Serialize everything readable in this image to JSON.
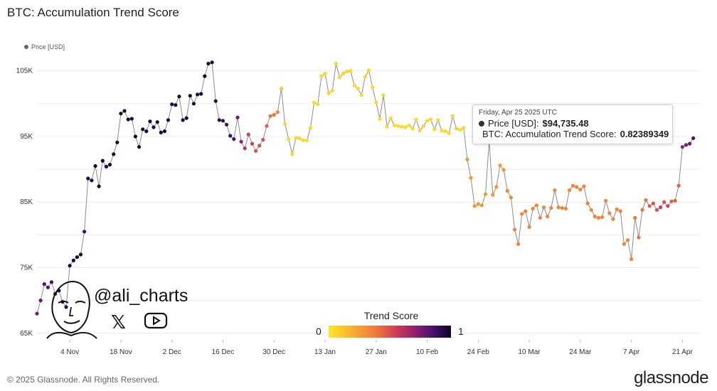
{
  "title": "BTC: Accumulation Trend Score",
  "legend": {
    "label": "Price [USD]"
  },
  "footer": "© 2025 Glassnode. All Rights Reserved.",
  "brand": "glassnode",
  "watermark": {
    "handle": "@ali_charts",
    "x_glyph": "𝕏"
  },
  "tooltip": {
    "date": "Friday, Apr 25 2025 UTC",
    "price_label": "Price [USD]:",
    "price_value": "$94,735.48",
    "score_label": "BTC: Accumulation Trend Score:",
    "score_value": "0.82389349",
    "price_color": "#333333",
    "score_color": "#5a1a7a"
  },
  "color_scale": {
    "title": "Trend Score",
    "min_label": "0",
    "max_label": "1"
  },
  "chart_data": {
    "type": "scatter",
    "title": "BTC: Accumulation Trend Score",
    "x_ticks": [
      "4 Nov",
      "18 Nov",
      "2 Dec",
      "16 Dec",
      "30 Dec",
      "13 Jan",
      "27 Jan",
      "10 Feb",
      "24 Feb",
      "10 Mar",
      "24 Mar",
      "7 Apr",
      "21 Apr"
    ],
    "y_ticks": [
      "65K",
      "75K",
      "85K",
      "95K",
      "105K"
    ],
    "ylim": [
      64000,
      108000
    ],
    "series": [
      {
        "name": "Price [USD]",
        "x_day_start": "2024-10-26",
        "points": [
          [
            0,
            68000,
            0.7
          ],
          [
            1,
            70000,
            0.75
          ],
          [
            2,
            72500,
            0.8
          ],
          [
            3,
            72000,
            0.8
          ],
          [
            4,
            72800,
            0.85
          ],
          [
            5,
            71000,
            0.85
          ],
          [
            6,
            71500,
            0.9
          ],
          [
            7,
            69800,
            0.9
          ],
          [
            8,
            69000,
            0.9
          ],
          [
            9,
            75300,
            0.95
          ],
          [
            10,
            76100,
            0.95
          ],
          [
            11,
            76600,
            0.95
          ],
          [
            12,
            77000,
            0.95
          ],
          [
            13,
            80500,
            0.85
          ],
          [
            14,
            88600,
            0.95
          ],
          [
            15,
            88300,
            0.95
          ],
          [
            16,
            90500,
            0.95
          ],
          [
            17,
            87400,
            0.95
          ],
          [
            18,
            91300,
            0.95
          ],
          [
            19,
            90400,
            0.95
          ],
          [
            20,
            90700,
            0.95
          ],
          [
            21,
            92300,
            0.95
          ],
          [
            22,
            94100,
            0.95
          ],
          [
            23,
            98500,
            0.95
          ],
          [
            24,
            98900,
            0.95
          ],
          [
            25,
            97600,
            0.95
          ],
          [
            26,
            97700,
            0.95
          ],
          [
            27,
            95000,
            0.95
          ],
          [
            28,
            93400,
            0.95
          ],
          [
            29,
            96100,
            0.95
          ],
          [
            30,
            95800,
            0.95
          ],
          [
            31,
            97300,
            0.95
          ],
          [
            32,
            96400,
            0.95
          ],
          [
            33,
            97200,
            0.95
          ],
          [
            34,
            95600,
            0.95
          ],
          [
            35,
            95800,
            0.95
          ],
          [
            36,
            97500,
            0.95
          ],
          [
            37,
            99900,
            0.95
          ],
          [
            38,
            99800,
            0.95
          ],
          [
            39,
            101100,
            0.95
          ],
          [
            40,
            97500,
            0.95
          ],
          [
            41,
            97800,
            0.95
          ],
          [
            42,
            101200,
            0.95
          ],
          [
            43,
            100000,
            0.95
          ],
          [
            44,
            101400,
            0.95
          ],
          [
            45,
            101500,
            0.95
          ],
          [
            46,
            104200,
            0.95
          ],
          [
            47,
            106100,
            0.95
          ],
          [
            48,
            106300,
            0.95
          ],
          [
            49,
            100400,
            0.9
          ],
          [
            50,
            97500,
            0.9
          ],
          [
            51,
            97400,
            0.88
          ],
          [
            52,
            96800,
            0.85
          ],
          [
            53,
            95100,
            0.85
          ],
          [
            54,
            94600,
            0.8
          ],
          [
            55,
            97900,
            0.75
          ],
          [
            56,
            94200,
            0.65
          ],
          [
            57,
            93200,
            0.55
          ],
          [
            58,
            95300,
            0.5
          ],
          [
            59,
            93900,
            0.5
          ],
          [
            60,
            92800,
            0.45
          ],
          [
            61,
            93600,
            0.45
          ],
          [
            62,
            94500,
            0.45
          ],
          [
            63,
            96600,
            0.4
          ],
          [
            64,
            98100,
            0.35
          ],
          [
            65,
            98300,
            0.35
          ],
          [
            66,
            98700,
            0.3
          ],
          [
            67,
            102300,
            0.1
          ],
          [
            68,
            96900,
            0.05
          ],
          [
            69,
            94600,
            0.05
          ],
          [
            70,
            92300,
            0.05
          ],
          [
            71,
            94800,
            0.05
          ],
          [
            72,
            94700,
            0.05
          ],
          [
            73,
            94400,
            0.05
          ],
          [
            74,
            94400,
            0.05
          ],
          [
            75,
            96300,
            0.05
          ],
          [
            76,
            100200,
            0.05
          ],
          [
            77,
            99900,
            0.05
          ],
          [
            78,
            104200,
            0.05
          ],
          [
            79,
            104600,
            0.05
          ],
          [
            80,
            101600,
            0.05
          ],
          [
            81,
            102000,
            0.05
          ],
          [
            82,
            106100,
            0.05
          ],
          [
            83,
            104000,
            0.05
          ],
          [
            84,
            104600,
            0.05
          ],
          [
            85,
            104900,
            0.05
          ],
          [
            86,
            105000,
            0.05
          ],
          [
            87,
            102800,
            0.05
          ],
          [
            88,
            102300,
            0.05
          ],
          [
            89,
            101300,
            0.05
          ],
          [
            90,
            104100,
            0.05
          ],
          [
            91,
            105100,
            0.05
          ],
          [
            92,
            102500,
            0.05
          ],
          [
            93,
            100200,
            0.05
          ],
          [
            94,
            97700,
            0.05
          ],
          [
            95,
            101300,
            0.05
          ],
          [
            96,
            96500,
            0.05
          ],
          [
            97,
            97800,
            0.05
          ],
          [
            98,
            96700,
            0.05
          ],
          [
            99,
            96600,
            0.05
          ],
          [
            100,
            96500,
            0.05
          ],
          [
            101,
            96400,
            0.05
          ],
          [
            102,
            96700,
            0.05
          ],
          [
            103,
            96200,
            0.05
          ],
          [
            104,
            97600,
            0.05
          ],
          [
            105,
            95900,
            0.05
          ],
          [
            106,
            96600,
            0.05
          ],
          [
            107,
            97400,
            0.05
          ],
          [
            108,
            97600,
            0.05
          ],
          [
            109,
            96100,
            0.05
          ],
          [
            110,
            97500,
            0.05
          ],
          [
            111,
            95900,
            0.05
          ],
          [
            112,
            95800,
            0.05
          ],
          [
            113,
            95500,
            0.05
          ],
          [
            114,
            98100,
            0.05
          ],
          [
            115,
            96200,
            0.05
          ],
          [
            116,
            96000,
            0.05
          ],
          [
            117,
            96300,
            0.05
          ],
          [
            118,
            91500,
            0.25
          ],
          [
            119,
            88700,
            0.25
          ],
          [
            120,
            84400,
            0.25
          ],
          [
            121,
            84700,
            0.25
          ],
          [
            122,
            84500,
            0.25
          ],
          [
            123,
            86200,
            0.25
          ],
          [
            124,
            94300,
            0.25
          ],
          [
            125,
            86100,
            0.25
          ],
          [
            126,
            87300,
            0.25
          ],
          [
            127,
            90600,
            0.25
          ],
          [
            128,
            89900,
            0.25
          ],
          [
            129,
            86700,
            0.3
          ],
          [
            130,
            85700,
            0.3
          ],
          [
            131,
            80800,
            0.3
          ],
          [
            132,
            78600,
            0.3
          ],
          [
            133,
            83200,
            0.3
          ],
          [
            134,
            83600,
            0.3
          ],
          [
            135,
            81200,
            0.3
          ],
          [
            136,
            84000,
            0.3
          ],
          [
            137,
            84500,
            0.3
          ],
          [
            138,
            82600,
            0.3
          ],
          [
            139,
            84200,
            0.3
          ],
          [
            140,
            82800,
            0.3
          ],
          [
            141,
            84100,
            0.3
          ],
          [
            142,
            86800,
            0.3
          ],
          [
            143,
            84200,
            0.3
          ],
          [
            144,
            84100,
            0.3
          ],
          [
            145,
            84000,
            0.3
          ],
          [
            146,
            86800,
            0.3
          ],
          [
            147,
            87500,
            0.3
          ],
          [
            148,
            87300,
            0.3
          ],
          [
            149,
            86900,
            0.3
          ],
          [
            150,
            87400,
            0.3
          ],
          [
            151,
            84800,
            0.3
          ],
          [
            152,
            83800,
            0.3
          ],
          [
            153,
            82800,
            0.3
          ],
          [
            154,
            82600,
            0.3
          ],
          [
            155,
            82700,
            0.3
          ],
          [
            156,
            85200,
            0.3
          ],
          [
            157,
            83300,
            0.3
          ],
          [
            158,
            82400,
            0.3
          ],
          [
            159,
            83900,
            0.3
          ],
          [
            160,
            83600,
            0.3
          ],
          [
            161,
            78600,
            0.3
          ],
          [
            162,
            79200,
            0.3
          ],
          [
            163,
            76300,
            0.3
          ],
          [
            164,
            82600,
            0.35
          ],
          [
            165,
            79600,
            0.35
          ],
          [
            166,
            83800,
            0.35
          ],
          [
            167,
            85300,
            0.35
          ],
          [
            168,
            84400,
            0.4
          ],
          [
            169,
            84800,
            0.45
          ],
          [
            170,
            83800,
            0.45
          ],
          [
            171,
            84200,
            0.5
          ],
          [
            172,
            85000,
            0.45
          ],
          [
            173,
            84400,
            0.5
          ],
          [
            174,
            85100,
            0.4
          ],
          [
            175,
            85200,
            0.4
          ],
          [
            176,
            87500,
            0.4
          ],
          [
            177,
            93400,
            0.65
          ],
          [
            178,
            93700,
            0.7
          ],
          [
            179,
            93900,
            0.72
          ],
          [
            180,
            94735,
            0.82
          ]
        ]
      }
    ],
    "xlabel": "",
    "ylabel": "",
    "grid": true,
    "legend_position": "top-left",
    "color_scale": {
      "name": "Trend Score",
      "range": [
        0,
        1
      ],
      "colors": [
        "#fde725",
        "#f8b52f",
        "#ee7a3b",
        "#cc3e55",
        "#8b1d6e",
        "#42106b",
        "#0d0623"
      ]
    }
  }
}
